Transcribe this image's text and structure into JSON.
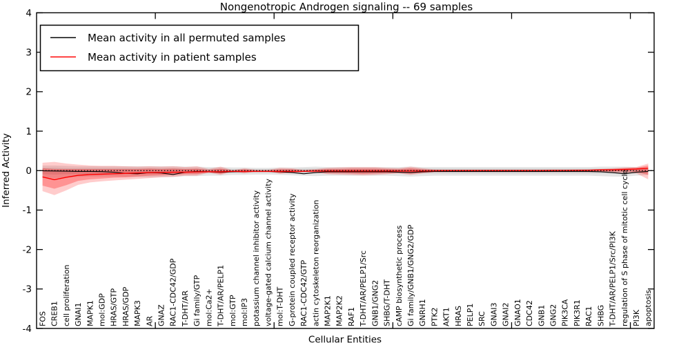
{
  "figure": {
    "title": "Nongenotropic Androgen signaling -- 69 samples",
    "xlabel": "Cellular Entities",
    "ylabel": "Inferred Activity"
  },
  "legend": {
    "position": "upper left",
    "entries": [
      {
        "label": "Mean activity in all permuted samples",
        "color": "#000000"
      },
      {
        "label": "Mean activity in patient samples",
        "color": "#ff0000"
      }
    ]
  },
  "chart_data": {
    "type": "line",
    "title": "Nongenotropic Androgen signaling -- 69 samples",
    "xlabel": "Cellular Entities",
    "ylabel": "Inferred Activity",
    "ylim": [
      -4,
      4
    ],
    "yticks": [
      -4,
      -3,
      -2,
      -1,
      0,
      1,
      2,
      3,
      4
    ],
    "xlim": [
      0,
      52
    ],
    "xticks": [
      10,
      20,
      30,
      40,
      50
    ],
    "grid": false,
    "zero_reference_line": true,
    "legend_position": "upper left",
    "categories": [
      "FOS",
      "CREB1",
      "cell proliferation",
      "GNAI1",
      "MAPK1",
      "mol:GDP",
      "HRAS/GTP",
      "HRAS/GDP",
      "MAPK3",
      "AR",
      "GNAZ",
      "RAC1-CDC42/GDP",
      "T-DHT/AR",
      "Gi family/GTP",
      "mol:Ca2+",
      "T-DHT/AR/PELP1",
      "mol:GTP",
      "mol:IP3",
      "potassium channel inhibitor activity",
      "voltage-gated calcium channel activity",
      "mol:T-DHT",
      "G-protein coupled receptor activity",
      "RAC1-CDC42/GTP",
      "actin cytoskeleton reorganization",
      "MAP2K1",
      "MAP2K2",
      "RAF1",
      "T-DHT/AR/PELP1/Src",
      "GNB1/GNG2",
      "SHBG/T-DHT",
      "cAMP biosynthetic process",
      "Gi family/GNB1/GNG2/GDP",
      "GNRH1",
      "PTK2",
      "AKT1",
      "HRAS",
      "PELP1",
      "SRC",
      "GNAI3",
      "GNAI2",
      "GNAO1",
      "CDC42",
      "GNB1",
      "GNG2",
      "PIK3CA",
      "PIK3R1",
      "RAC1",
      "SHBG",
      "T-DHT/AR/PELP1/Src/PI3K",
      "regulation of S phase of mitotic cell cycle",
      "PI3K",
      "apoptosis"
    ],
    "series": [
      {
        "name": "Mean activity in all permuted samples",
        "color": "#000000",
        "width": 1.1,
        "values": [
          -0.005,
          -0.01,
          -0.015,
          -0.02,
          -0.02,
          -0.025,
          -0.04,
          -0.07,
          -0.08,
          -0.05,
          -0.06,
          -0.1,
          -0.04,
          -0.02,
          -0.03,
          -0.04,
          -0.03,
          -0.02,
          -0.02,
          -0.02,
          -0.03,
          -0.05,
          -0.08,
          -0.05,
          -0.03,
          -0.03,
          -0.03,
          -0.03,
          -0.03,
          -0.03,
          -0.04,
          -0.05,
          -0.03,
          -0.02,
          -0.02,
          -0.02,
          -0.02,
          -0.02,
          -0.02,
          -0.02,
          -0.02,
          -0.02,
          -0.02,
          -0.02,
          -0.02,
          -0.02,
          -0.02,
          -0.03,
          -0.05,
          -0.08,
          -0.04,
          -0.02
        ]
      },
      {
        "name": "Mean activity in patient samples",
        "color": "#ff0000",
        "width": 1.4,
        "values": [
          -0.16,
          -0.23,
          -0.17,
          -0.12,
          -0.1,
          -0.09,
          -0.08,
          -0.07,
          -0.06,
          -0.05,
          -0.05,
          -0.04,
          -0.04,
          -0.03,
          -0.03,
          -0.03,
          -0.02,
          -0.02,
          -0.02,
          -0.02,
          -0.02,
          -0.02,
          -0.02,
          -0.01,
          -0.01,
          -0.01,
          -0.01,
          -0.01,
          -0.01,
          -0.01,
          -0.01,
          -0.01,
          -0.01,
          -0.005,
          0,
          0,
          0,
          0,
          0,
          0,
          0,
          0,
          0,
          0.005,
          0.005,
          0.01,
          0.01,
          0.02,
          0.02,
          0.03,
          0.04,
          0.06
        ]
      }
    ],
    "bands": [
      {
        "name": "permuted-outer",
        "color": "rgba(0,0,0,0.10)",
        "upper": [
          0.13,
          0.13,
          0.12,
          0.11,
          0.11,
          0.11,
          0.11,
          0.11,
          0.11,
          0.11,
          0.11,
          0.11,
          0.1,
          0.1,
          0.09,
          0.09,
          0.08,
          0.08,
          0.07,
          0.07,
          0.08,
          0.08,
          0.09,
          0.1,
          0.09,
          0.09,
          0.09,
          0.09,
          0.09,
          0.09,
          0.09,
          0.1,
          0.09,
          0.09,
          0.09,
          0.09,
          0.09,
          0.09,
          0.09,
          0.09,
          0.09,
          0.09,
          0.09,
          0.09,
          0.09,
          0.09,
          0.09,
          0.1,
          0.1,
          0.1,
          0.09,
          0.07
        ],
        "lower": [
          -0.17,
          -0.19,
          -0.18,
          -0.16,
          -0.15,
          -0.15,
          -0.15,
          -0.16,
          -0.16,
          -0.17,
          -0.16,
          -0.16,
          -0.14,
          -0.14,
          -0.13,
          -0.13,
          -0.11,
          -0.11,
          -0.1,
          -0.1,
          -0.11,
          -0.12,
          -0.13,
          -0.14,
          -0.13,
          -0.13,
          -0.13,
          -0.13,
          -0.13,
          -0.13,
          -0.14,
          -0.15,
          -0.14,
          -0.13,
          -0.13,
          -0.13,
          -0.13,
          -0.13,
          -0.13,
          -0.13,
          -0.13,
          -0.13,
          -0.13,
          -0.13,
          -0.13,
          -0.13,
          -0.13,
          -0.14,
          -0.15,
          -0.15,
          -0.13,
          -0.11
        ]
      },
      {
        "name": "permuted-inner",
        "color": "rgba(0,0,0,0.09)",
        "upper": [
          0.07,
          0.07,
          0.06,
          0.06,
          0.06,
          0.06,
          0.06,
          0.06,
          0.06,
          0.06,
          0.06,
          0.06,
          0.05,
          0.05,
          0.05,
          0.05,
          0.04,
          0.04,
          0.04,
          0.04,
          0.04,
          0.04,
          0.05,
          0.05,
          0.05,
          0.05,
          0.05,
          0.05,
          0.05,
          0.05,
          0.05,
          0.05,
          0.05,
          0.05,
          0.05,
          0.05,
          0.05,
          0.05,
          0.05,
          0.05,
          0.05,
          0.05,
          0.05,
          0.05,
          0.05,
          0.05,
          0.05,
          0.05,
          0.05,
          0.05,
          0.05,
          0.04
        ],
        "lower": [
          -0.09,
          -0.1,
          -0.09,
          -0.08,
          -0.08,
          -0.08,
          -0.08,
          -0.08,
          -0.08,
          -0.09,
          -0.08,
          -0.08,
          -0.07,
          -0.07,
          -0.07,
          -0.07,
          -0.06,
          -0.06,
          -0.05,
          -0.05,
          -0.06,
          -0.06,
          -0.07,
          -0.07,
          -0.07,
          -0.07,
          -0.07,
          -0.07,
          -0.07,
          -0.07,
          -0.07,
          -0.08,
          -0.07,
          -0.07,
          -0.07,
          -0.07,
          -0.07,
          -0.07,
          -0.07,
          -0.07,
          -0.07,
          -0.07,
          -0.07,
          -0.07,
          -0.07,
          -0.07,
          -0.07,
          -0.07,
          -0.08,
          -0.08,
          -0.07,
          -0.06
        ]
      },
      {
        "name": "patient-outer",
        "color": "rgba(255,0,0,0.20)",
        "upper": [
          0.2,
          0.22,
          0.18,
          0.15,
          0.13,
          0.12,
          0.12,
          0.11,
          0.1,
          0.11,
          0.1,
          0.11,
          0.09,
          0.11,
          0.04,
          0.1,
          0.01,
          0.06,
          0.02,
          0.02,
          0.07,
          0.06,
          0.02,
          0.04,
          0.07,
          0.08,
          0.09,
          0.09,
          0.09,
          0.07,
          0.06,
          0.1,
          0.06,
          0.03,
          0.025,
          0.025,
          0.025,
          0.025,
          0.025,
          0.025,
          0.025,
          0.025,
          0.025,
          0.025,
          0.025,
          0.025,
          0.03,
          0.04,
          0.06,
          0.08,
          0.09,
          0.18
        ],
        "lower": [
          -0.52,
          -0.62,
          -0.5,
          -0.36,
          -0.3,
          -0.27,
          -0.25,
          -0.23,
          -0.21,
          -0.19,
          -0.17,
          -0.16,
          -0.13,
          -0.13,
          -0.05,
          -0.11,
          -0.02,
          -0.07,
          -0.02,
          -0.02,
          -0.08,
          -0.06,
          -0.03,
          -0.05,
          -0.09,
          -0.1,
          -0.11,
          -0.12,
          -0.11,
          -0.09,
          -0.07,
          -0.11,
          -0.07,
          -0.04,
          -0.035,
          -0.035,
          -0.035,
          -0.035,
          -0.035,
          -0.035,
          -0.035,
          -0.035,
          -0.035,
          -0.035,
          -0.035,
          -0.035,
          -0.04,
          -0.04,
          -0.05,
          -0.06,
          -0.07,
          -0.22
        ]
      },
      {
        "name": "patient-inner",
        "color": "rgba(255,0,0,0.28)",
        "upper": [
          0.06,
          0.04,
          0.04,
          0.04,
          0.04,
          0.04,
          0.04,
          0.04,
          0.04,
          0.05,
          0.04,
          0.05,
          0.04,
          0.05,
          0.01,
          0.05,
          0.0,
          0.03,
          0.0,
          0.0,
          0.03,
          0.03,
          0.0,
          0.02,
          0.04,
          0.04,
          0.05,
          0.05,
          0.05,
          0.04,
          0.03,
          0.06,
          0.03,
          0.02,
          0.015,
          0.015,
          0.015,
          0.015,
          0.015,
          0.015,
          0.015,
          0.015,
          0.015,
          0.015,
          0.015,
          0.015,
          0.02,
          0.03,
          0.04,
          0.06,
          0.07,
          0.13
        ],
        "lower": [
          -0.38,
          -0.46,
          -0.37,
          -0.26,
          -0.22,
          -0.2,
          -0.18,
          -0.17,
          -0.15,
          -0.13,
          -0.12,
          -0.11,
          -0.09,
          -0.09,
          -0.04,
          -0.08,
          -0.02,
          -0.05,
          -0.02,
          -0.02,
          -0.06,
          -0.04,
          -0.03,
          -0.03,
          -0.06,
          -0.06,
          -0.07,
          -0.08,
          -0.07,
          -0.06,
          -0.05,
          -0.07,
          -0.05,
          -0.03,
          -0.02,
          -0.02,
          -0.02,
          -0.02,
          -0.02,
          -0.02,
          -0.02,
          -0.02,
          -0.02,
          -0.02,
          -0.02,
          -0.02,
          -0.02,
          -0.02,
          -0.02,
          -0.02,
          -0.03,
          -0.11
        ]
      }
    ]
  }
}
